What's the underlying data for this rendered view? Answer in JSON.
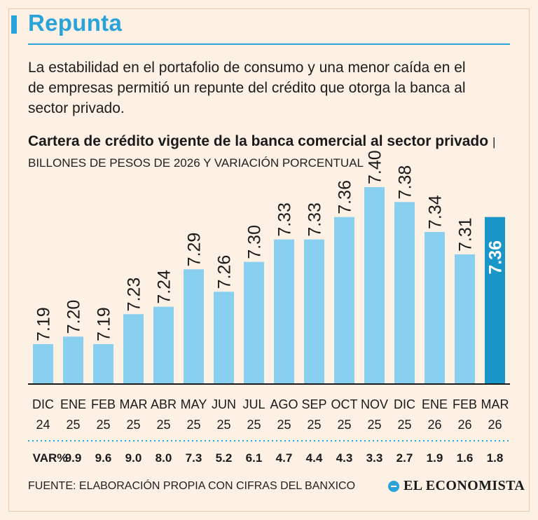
{
  "header": {
    "title": "Repunta",
    "lede": "La estabilidad en el portafolio de consumo y una menor caída en el de empresas permitió un repunte del crédito que otorga la banca al sector privado.",
    "chart_title": "Cartera de crédito vigente de la banca comercial al sector privado",
    "chart_subtitle": "| BILLONES DE PESOS DE 2026 Y VARIACIÓN PORCENTUAL"
  },
  "chart_data": {
    "type": "bar",
    "title": "Cartera de crédito vigente de la banca comercial al sector privado",
    "ylabel": "BILLONES DE PESOS DE 2026 Y VARIACIÓN PORCENTUAL",
    "categories": [
      {
        "month": "DIC",
        "year": "24"
      },
      {
        "month": "ENE",
        "year": "25"
      },
      {
        "month": "FEB",
        "year": "25"
      },
      {
        "month": "MAR",
        "year": "25"
      },
      {
        "month": "ABR",
        "year": "25"
      },
      {
        "month": "MAY",
        "year": "25"
      },
      {
        "month": "JUN",
        "year": "25"
      },
      {
        "month": "JUL",
        "year": "25"
      },
      {
        "month": "AGO",
        "year": "25"
      },
      {
        "month": "SEP",
        "year": "25"
      },
      {
        "month": "OCT",
        "year": "25"
      },
      {
        "month": "NOV",
        "year": "25"
      },
      {
        "month": "DIC",
        "year": "25"
      },
      {
        "month": "ENE",
        "year": "26"
      },
      {
        "month": "FEB",
        "year": "26"
      },
      {
        "month": "MAR",
        "year": "26"
      }
    ],
    "values": [
      7.19,
      7.2,
      7.19,
      7.23,
      7.24,
      7.29,
      7.26,
      7.3,
      7.33,
      7.33,
      7.36,
      7.4,
      7.38,
      7.34,
      7.31,
      7.36
    ],
    "value_labels": [
      "7.19",
      "7.20",
      "7.19",
      "7.23",
      "7.24",
      "7.29",
      "7.26",
      "7.30",
      "7.33",
      "7.33",
      "7.36",
      "7.40",
      "7.38",
      "7.34",
      "7.31",
      "7.36"
    ],
    "var_label": "VAR%",
    "var_values": [
      "9.9",
      "9.6",
      "9.0",
      "8.0",
      "7.3",
      "5.2",
      "6.1",
      "4.7",
      "4.4",
      "4.3",
      "3.3",
      "2.7",
      "1.9",
      "1.6",
      "1.8"
    ],
    "highlight_index": 15,
    "colors": {
      "bar": "#89cff0",
      "highlight": "#1a95c8",
      "axis": "#1a1a1a",
      "dots": "#29a3d9"
    }
  },
  "footer": {
    "source": "FUENTE: ELABORACIÓN PROPIA CON CIFRAS DEL BANXICO",
    "brand": "EL ECONOMISTA",
    "brand_icon": "el-economista-logo-icon"
  }
}
